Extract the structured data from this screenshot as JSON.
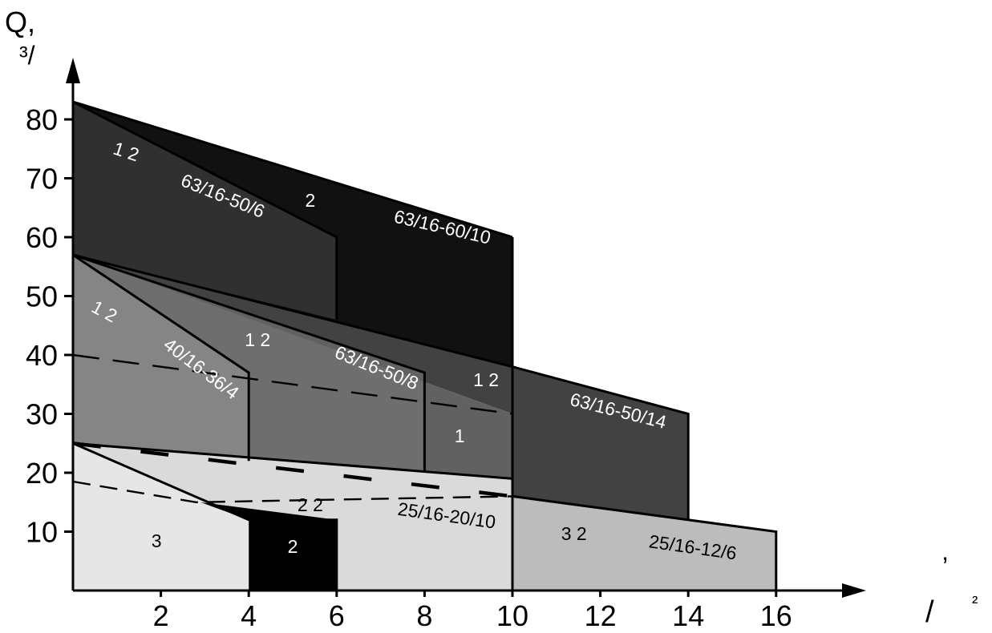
{
  "chart_data": {
    "type": "area",
    "title": "",
    "ylabel": "Q,",
    "ylabel_units": "³/",
    "xlabel": "/",
    "xlabel_mark": "’",
    "xlabel_exp": "²",
    "xlim": [
      0,
      18
    ],
    "ylim": [
      0,
      90
    ],
    "x_ticks": [
      "2",
      "4",
      "6",
      "8",
      "10",
      "12",
      "14",
      "16"
    ],
    "y_ticks": [
      "10",
      "20",
      "30",
      "40",
      "50",
      "60",
      "70",
      "80"
    ],
    "grid": false,
    "zones": [
      {
        "id": "z-63-60-10",
        "fill": "#111111",
        "points": [
          [
            0,
            83
          ],
          [
            10,
            60
          ],
          [
            10,
            38
          ],
          [
            0,
            57
          ]
        ]
      },
      {
        "id": "z-63-50-14",
        "fill": "#424242",
        "points": [
          [
            0,
            57
          ],
          [
            10,
            38
          ],
          [
            14,
            30
          ],
          [
            14,
            12
          ],
          [
            10,
            16
          ],
          [
            10,
            30
          ],
          [
            0,
            57
          ]
        ]
      },
      {
        "id": "z-63-50-6",
        "fill": "#303030",
        "points": [
          [
            0,
            83
          ],
          [
            6,
            60
          ],
          [
            6,
            46
          ],
          [
            0,
            57
          ]
        ]
      },
      {
        "id": "z-63-50-8",
        "fill": "#6e6e6e",
        "points": [
          [
            0,
            57
          ],
          [
            8,
            37
          ],
          [
            8,
            20
          ],
          [
            4,
            22
          ],
          [
            4,
            37
          ]
        ]
      },
      {
        "id": "z-1",
        "fill": "#616161",
        "points": [
          [
            0,
            57
          ],
          [
            10,
            30
          ],
          [
            10,
            19
          ],
          [
            8,
            20
          ],
          [
            8,
            37
          ]
        ]
      },
      {
        "id": "z-40-36-4",
        "fill": "#858585",
        "points": [
          [
            0,
            57
          ],
          [
            4,
            37
          ],
          [
            4,
            22
          ],
          [
            0,
            25
          ]
        ]
      },
      {
        "id": "z-25-20-10",
        "fill": "#dadada",
        "points": [
          [
            0,
            25
          ],
          [
            10,
            19
          ],
          [
            10,
            0
          ],
          [
            6,
            0
          ],
          [
            6,
            12
          ],
          [
            3,
            14
          ]
        ]
      },
      {
        "id": "z-25-12-6",
        "fill": "#bcbcbc",
        "points": [
          [
            10,
            16
          ],
          [
            16,
            10
          ],
          [
            16,
            0
          ],
          [
            10,
            0
          ]
        ]
      },
      {
        "id": "z-3",
        "fill": "#e6e6e6",
        "points": [
          [
            0,
            25
          ],
          [
            4,
            12
          ],
          [
            4,
            0
          ],
          [
            0,
            0
          ]
        ]
      },
      {
        "id": "z-2-small",
        "fill": "#000000",
        "points": [
          [
            2.9,
            15
          ],
          [
            6,
            12
          ],
          [
            6,
            0
          ],
          [
            4,
            0
          ],
          [
            4,
            12
          ]
        ]
      }
    ],
    "boundaries": [
      {
        "id": "b-top",
        "points": [
          [
            0,
            83
          ],
          [
            10,
            60
          ]
        ]
      },
      {
        "id": "b-57-46",
        "points": [
          [
            0,
            83
          ],
          [
            6,
            60
          ],
          [
            6,
            46
          ]
        ]
      },
      {
        "id": "b-main",
        "points": [
          [
            0,
            57
          ],
          [
            10,
            38
          ],
          [
            14,
            30
          ],
          [
            14,
            12
          ]
        ]
      },
      {
        "id": "b-mid",
        "points": [
          [
            0,
            57
          ],
          [
            8,
            37
          ],
          [
            8,
            20
          ]
        ]
      },
      {
        "id": "b-left",
        "points": [
          [
            0,
            57
          ],
          [
            4,
            37
          ],
          [
            4,
            22
          ]
        ]
      },
      {
        "id": "b-25",
        "points": [
          [
            0,
            25
          ],
          [
            10,
            19
          ]
        ]
      },
      {
        "id": "b-10",
        "points": [
          [
            10,
            60
          ],
          [
            10,
            0
          ]
        ]
      },
      {
        "id": "b-16",
        "points": [
          [
            10,
            16
          ],
          [
            16,
            10
          ],
          [
            16,
            0
          ]
        ]
      },
      {
        "id": "b-diag",
        "points": [
          [
            0,
            25
          ],
          [
            4,
            12
          ],
          [
            6,
            12
          ],
          [
            6,
            0
          ]
        ]
      }
    ],
    "dashed_lines": [
      {
        "id": "d-40",
        "pattern": "33 17",
        "width": 2.4,
        "points": [
          [
            0,
            40
          ],
          [
            10,
            30
          ]
        ]
      },
      {
        "id": "d-25",
        "pattern": "35 50",
        "width": 4.5,
        "points": [
          [
            0,
            25
          ],
          [
            10,
            16
          ]
        ]
      },
      {
        "id": "d-18",
        "pattern": "22 12",
        "width": 2.4,
        "points": [
          [
            0,
            18.5
          ],
          [
            2.8,
            15
          ],
          [
            10,
            16
          ],
          [
            14,
            12
          ]
        ]
      }
    ],
    "labels": [
      {
        "id": "l-12-a",
        "text": "1 2",
        "x": 1.2,
        "y": 74.3,
        "rotate": 18,
        "color": "#ffffff"
      },
      {
        "id": "l-63-50-6",
        "text": "63/16-50/6",
        "x": 3.4,
        "y": 66.8,
        "rotate": 22,
        "color": "#ffffff"
      },
      {
        "id": "l-2-a",
        "text": "2",
        "x": 5.4,
        "y": 66,
        "rotate": 0,
        "color": "#ffffff"
      },
      {
        "id": "l-63-60-10",
        "text": "63/16-60/10",
        "x": 8.4,
        "y": 61.5,
        "rotate": 13,
        "color": "#ffffff"
      },
      {
        "id": "l-12-b",
        "text": "1 2",
        "x": 0.7,
        "y": 47.2,
        "rotate": 28,
        "color": "#ffffff"
      },
      {
        "id": "l-40-36-4",
        "text": "40/16-36/4",
        "x": 2.9,
        "y": 37.5,
        "rotate": 37,
        "color": "#ffffff"
      },
      {
        "id": "l-12-c",
        "text": "1 2",
        "x": 4.2,
        "y": 42.3,
        "rotate": 0,
        "color": "#ffffff"
      },
      {
        "id": "l-63-50-8",
        "text": "63/16-50/8",
        "x": 6.9,
        "y": 37.6,
        "rotate": 22,
        "color": "#ffffff"
      },
      {
        "id": "l-12-d",
        "text": "1 2",
        "x": 9.4,
        "y": 35.5,
        "rotate": 0,
        "color": "#ffffff"
      },
      {
        "id": "l-63-50-14",
        "text": "63/16-50/14",
        "x": 12.4,
        "y": 30.3,
        "rotate": 14,
        "color": "#ffffff"
      },
      {
        "id": "l-1",
        "text": "1",
        "x": 8.8,
        "y": 26,
        "rotate": 0,
        "color": "#ffffff"
      },
      {
        "id": "l-22",
        "text": "2 2",
        "x": 5.4,
        "y": 14.3,
        "rotate": 0,
        "color": "#000000"
      },
      {
        "id": "l-25-20-10",
        "text": "25/16-20/10",
        "x": 8.5,
        "y": 12.5,
        "rotate": 8,
        "color": "#000000"
      },
      {
        "id": "l-3",
        "text": "3",
        "x": 1.9,
        "y": 8.2,
        "rotate": 0,
        "color": "#000000"
      },
      {
        "id": "l-2-b",
        "text": "2",
        "x": 5.0,
        "y": 7.2,
        "rotate": 0,
        "color": "#ffffff"
      },
      {
        "id": "l-32",
        "text": "3 2",
        "x": 11.4,
        "y": 9.4,
        "rotate": 0,
        "color": "#000000"
      },
      {
        "id": "l-25-12-6",
        "text": "25/16-12/6",
        "x": 14.1,
        "y": 7.1,
        "rotate": 8,
        "color": "#000000"
      }
    ]
  }
}
